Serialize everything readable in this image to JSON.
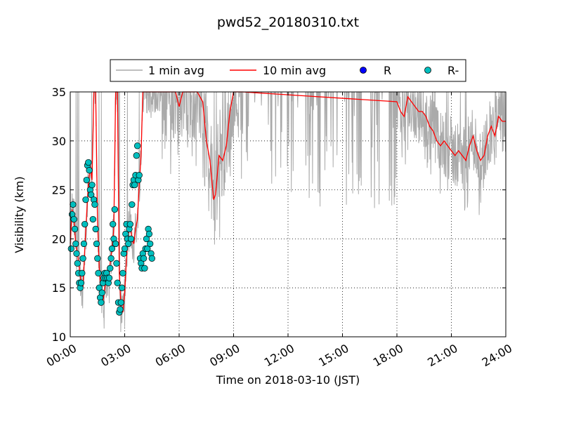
{
  "chart_data": {
    "type": "line",
    "title": "pwd52_20180310.txt",
    "xlabel": "Time on 2018-03-10 (JST)",
    "ylabel": "Visibility (km)",
    "xlim_hours": [
      0,
      24
    ],
    "ylim": [
      10,
      35
    ],
    "x_ticks": [
      "00:00",
      "03:00",
      "06:00",
      "09:00",
      "12:00",
      "15:00",
      "18:00",
      "21:00",
      "24:00"
    ],
    "y_ticks": [
      "10",
      "15",
      "20",
      "25",
      "30",
      "35"
    ],
    "grid": "dotted",
    "legend": {
      "placement": "top-center (above plot)",
      "entries": [
        "1 min avg",
        "10 min avg",
        "R",
        "R-"
      ]
    },
    "colors": {
      "one_min": "#aaaaaa",
      "ten_min": "#ff0000",
      "rain": "#0000ff",
      "light_rain": "#00bfbf"
    },
    "series": [
      {
        "name": "10 min avg",
        "x_hours": [
          0.0,
          0.1,
          0.2,
          0.3,
          0.4,
          0.5,
          0.6,
          0.7,
          0.8,
          0.9,
          1.0,
          1.1,
          1.2,
          1.3,
          1.4,
          1.5,
          1.6,
          1.7,
          1.8,
          1.9,
          2.0,
          2.1,
          2.2,
          2.3,
          2.4,
          2.5,
          2.6,
          2.7,
          2.8,
          2.9,
          3.0,
          3.1,
          3.2,
          3.3,
          3.4,
          3.5,
          3.6,
          3.7,
          3.8,
          3.9,
          4.0,
          4.1,
          4.2,
          4.3,
          4.4,
          4.5,
          4.6,
          4.7,
          4.8,
          4.9,
          5.0,
          5.2,
          5.5,
          5.8,
          6.0,
          6.2,
          6.5,
          6.8,
          7.0,
          7.3,
          7.5,
          7.7,
          7.9,
          8.0,
          8.1,
          8.2,
          8.4,
          8.6,
          8.8,
          9.0,
          9.2,
          9.5,
          18.0,
          18.2,
          18.4,
          18.6,
          18.8,
          19.0,
          19.2,
          19.4,
          19.6,
          19.8,
          20.0,
          20.2,
          20.4,
          20.6,
          20.8,
          21.0,
          21.2,
          21.4,
          21.6,
          21.8,
          22.0,
          22.2,
          22.4,
          22.6,
          22.8,
          23.0,
          23.2,
          23.4,
          23.6,
          23.8,
          24.0
        ],
        "y_km": [
          19.5,
          23.0,
          22.0,
          19.5,
          18.5,
          17.0,
          15.5,
          15.0,
          19.0,
          22.5,
          25.5,
          27.5,
          26.0,
          35.0,
          35.0,
          22.0,
          17.0,
          14.5,
          13.5,
          15.0,
          16.0,
          16.5,
          17.5,
          19.0,
          21.0,
          35.0,
          35.0,
          16.5,
          13.0,
          12.5,
          14.5,
          18.0,
          20.5,
          21.5,
          20.0,
          19.5,
          21.0,
          22.0,
          25.5,
          28.5,
          35.0,
          35.0,
          35.0,
          35.0,
          35.0,
          35.0,
          35.0,
          35.0,
          35.0,
          35.0,
          35.0,
          35.0,
          35.0,
          35.0,
          33.5,
          35.0,
          35.0,
          35.0,
          35.0,
          34.0,
          30.0,
          28.0,
          24.0,
          24.5,
          26.5,
          28.5,
          28.0,
          29.5,
          33.0,
          35.0,
          35.0,
          35.0,
          34.0,
          33.0,
          32.5,
          34.5,
          34.0,
          33.5,
          33.0,
          33.0,
          32.5,
          31.5,
          31.0,
          30.0,
          29.5,
          30.0,
          29.5,
          29.0,
          28.5,
          29.0,
          28.5,
          28.0,
          29.5,
          30.5,
          29.0,
          28.0,
          28.5,
          30.5,
          31.5,
          30.5,
          32.5,
          32.0,
          32.0
        ]
      },
      {
        "name": "R-",
        "x_hours": [
          0.05,
          0.1,
          0.15,
          0.2,
          0.25,
          0.3,
          0.35,
          0.4,
          0.45,
          0.5,
          0.55,
          0.6,
          0.65,
          0.7,
          0.75,
          0.8,
          0.85,
          0.9,
          0.95,
          1.0,
          1.05,
          1.1,
          1.15,
          1.2,
          1.25,
          1.3,
          1.35,
          1.4,
          1.45,
          1.5,
          1.55,
          1.6,
          1.65,
          1.7,
          1.75,
          1.8,
          1.85,
          1.9,
          1.95,
          2.0,
          2.05,
          2.1,
          2.15,
          2.2,
          2.25,
          2.3,
          2.35,
          2.4,
          2.45,
          2.5,
          2.55,
          2.6,
          2.65,
          2.7,
          2.75,
          2.8,
          2.85,
          2.9,
          2.95,
          3.0,
          3.05,
          3.1,
          3.15,
          3.2,
          3.25,
          3.3,
          3.35,
          3.4,
          3.45,
          3.5,
          3.55,
          3.6,
          3.65,
          3.7,
          3.75,
          3.8,
          3.85,
          3.9,
          3.95,
          4.0,
          4.05,
          4.1,
          4.15,
          4.2,
          4.25,
          4.3,
          4.35,
          4.4,
          4.45,
          4.5
        ],
        "y_km": [
          19.0,
          22.5,
          23.5,
          22.0,
          21.0,
          19.5,
          18.5,
          17.5,
          16.5,
          15.5,
          15.0,
          15.5,
          16.5,
          18.0,
          19.5,
          21.5,
          24.0,
          26.0,
          27.5,
          27.8,
          27.0,
          25.0,
          24.5,
          25.5,
          22.0,
          24.0,
          23.5,
          21.0,
          19.5,
          18.0,
          16.5,
          15.0,
          14.0,
          13.5,
          14.5,
          15.5,
          16.0,
          16.5,
          16.0,
          16.5,
          16.0,
          15.5,
          16.0,
          17.0,
          18.0,
          19.0,
          21.5,
          20.0,
          23.0,
          19.5,
          17.5,
          15.5,
          13.5,
          12.5,
          12.8,
          13.5,
          15.0,
          16.5,
          18.5,
          19.0,
          20.5,
          21.5,
          20.0,
          19.5,
          21.0,
          21.5,
          20.0,
          23.5,
          25.5,
          26.0,
          25.5,
          26.5,
          28.5,
          29.5,
          26.0,
          26.5,
          18.0,
          17.5,
          17.0,
          18.5,
          18.0,
          17.0,
          19.0,
          20.0,
          19.0,
          21.0,
          20.5,
          19.5,
          18.5,
          18.0
        ]
      },
      {
        "name": "1 min avg",
        "values": "dense grey noise envelope around the 10 min avg, frequent spikes to 35 km"
      },
      {
        "name": "R",
        "values": []
      }
    ]
  }
}
